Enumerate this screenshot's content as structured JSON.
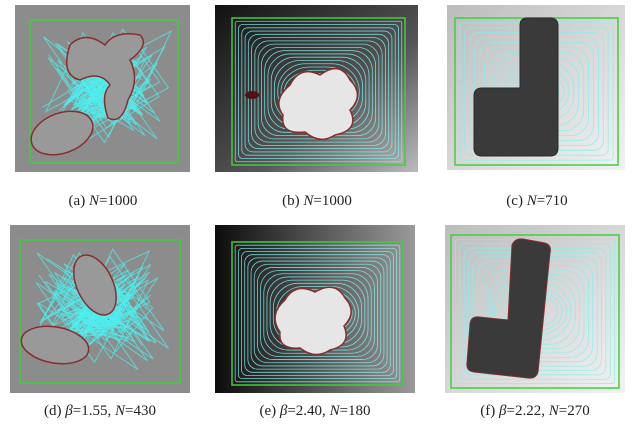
{
  "figure": {
    "panels": [
      {
        "caption": [
          "(a) ",
          "N",
          "=1000"
        ]
      },
      {
        "caption": [
          "(b) ",
          "N",
          "=1000"
        ]
      },
      {
        "caption": [
          "(c) ",
          "N",
          "=710"
        ]
      },
      {
        "caption": [
          "(d) ",
          "β",
          "=1.55, ",
          "N",
          "=430"
        ]
      },
      {
        "caption": [
          "(e) ",
          "β",
          "=2.40, ",
          "N",
          "=180"
        ]
      },
      {
        "caption": [
          "(f) ",
          "β",
          "=2.22, ",
          "N",
          "=270"
        ]
      }
    ]
  }
}
